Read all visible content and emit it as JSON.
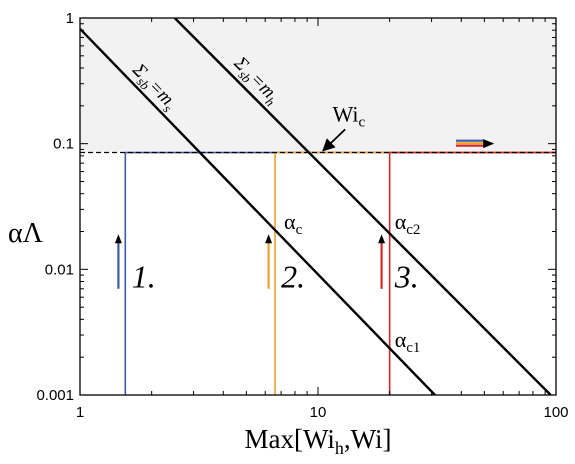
{
  "chart_data": {
    "type": "line",
    "xscale": "log",
    "yscale": "log",
    "xlim": [
      1,
      100
    ],
    "ylim": [
      0.001,
      1
    ],
    "xlabel": "Max[Wi",
    "xlabel_sub": "h",
    "xlabel_end": ",Wi]",
    "ylabel": "αΛ",
    "x_ticks": [
      {
        "value": 1,
        "label": "1"
      },
      {
        "value": 10,
        "label": "10"
      },
      {
        "value": 100,
        "label": "100"
      }
    ],
    "y_ticks": [
      {
        "value": 0.001,
        "label": "0.001"
      },
      {
        "value": 0.01,
        "label": "0.01"
      },
      {
        "value": 0.1,
        "label": "0.1"
      },
      {
        "value": 1,
        "label": "1"
      }
    ],
    "shaded_region": {
      "y_from": 0.085,
      "y_to": 1,
      "color": "#f2f2f2"
    },
    "threshold": {
      "y": 0.085,
      "style": "dashed",
      "color": "#000000"
    },
    "diagonals": [
      {
        "points": [
          [
            1,
            0.82
          ],
          [
            31,
            0.001
          ]
        ],
        "label_main": "Σ",
        "label_sub": "sb",
        "label_eq": "=m",
        "label_eq_sub": "s",
        "label_x": 1.65,
        "label_y": 0.38
      },
      {
        "points": [
          [
            2.5,
            1.0
          ],
          [
            95,
            0.001
          ]
        ],
        "label_main": "Σ",
        "label_sub": "sb",
        "label_eq": "=m",
        "label_eq_sub": "h",
        "label_x": 4.4,
        "label_y": 0.43
      }
    ],
    "series": [
      {
        "name": "1.",
        "color": "#3b5aa7",
        "x_start": 1.55,
        "y": 0.085,
        "arrow_x": 1.45,
        "arrow_y": [
          0.007,
          0.019
        ],
        "label_x": 1.65,
        "label_y": 0.0072
      },
      {
        "name": "2.",
        "color": "#f0a030",
        "x_start": 6.6,
        "y": 0.085,
        "arrow_x": 6.2,
        "arrow_y": [
          0.007,
          0.019
        ],
        "label_x": 7.0,
        "label_y": 0.0072
      },
      {
        "name": "3.",
        "color": "#d62828",
        "x_start": 20,
        "y": 0.085,
        "arrow_x": 18.5,
        "arrow_y": [
          0.007,
          0.019
        ],
        "label_x": 21,
        "label_y": 0.0072
      }
    ],
    "annotations": [
      {
        "text": "Wi",
        "sub": "c",
        "x": 11.5,
        "y": 0.15,
        "arrow_from": [
          13,
          0.13
        ],
        "arrow_to": [
          10.5,
          0.088
        ]
      },
      {
        "text": "α",
        "sub": "c",
        "x": 7.2,
        "y": 0.021
      },
      {
        "text": "α",
        "sub": "c2",
        "x": 21,
        "y": 0.021
      },
      {
        "text": "α",
        "sub": "c1",
        "x": 21,
        "y": 0.0024
      }
    ],
    "top_arrow": {
      "x_from": 38,
      "x_to": 55,
      "y": 0.1,
      "colors": [
        "#3b5aa7",
        "#f0a030",
        "#d62828"
      ]
    }
  }
}
